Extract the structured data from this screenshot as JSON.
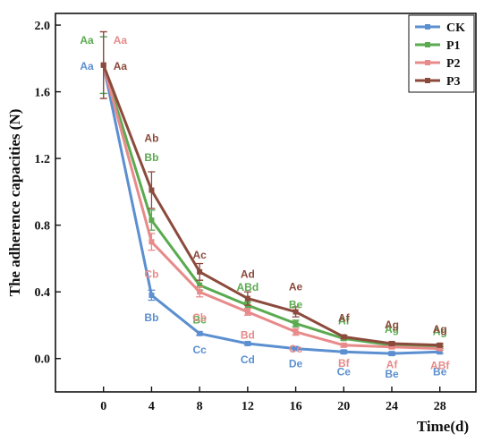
{
  "chart_data": {
    "type": "line",
    "xlabel": "Time(d)",
    "ylabel": "The adherence capacities (N)",
    "x": [
      0,
      4,
      8,
      12,
      16,
      20,
      24,
      28
    ],
    "xlim": [
      -4,
      31
    ],
    "ylim": [
      -0.2,
      2.07
    ],
    "xticks": [
      "0",
      "4",
      "8",
      "12",
      "16",
      "20",
      "24",
      "28"
    ],
    "yticks": [
      "0.0",
      "0.4",
      "0.8",
      "1.2",
      "1.6",
      "2.0"
    ],
    "grid": false,
    "legend_position": "top-right",
    "series": [
      {
        "name": "CK",
        "color": "#5b8fd0",
        "values": [
          1.76,
          0.38,
          0.15,
          0.09,
          0.06,
          0.04,
          0.03,
          0.04
        ],
        "errors": [
          0.17,
          0.03,
          0.01,
          0.01,
          0.01,
          0.01,
          0.01,
          0.01
        ],
        "labels": [
          "Aa",
          "Bb",
          "Cc",
          "Cd",
          "De",
          "Ce",
          "Be",
          "Be"
        ]
      },
      {
        "name": "P1",
        "color": "#5aaa4f",
        "values": [
          1.76,
          0.83,
          0.44,
          0.32,
          0.21,
          0.12,
          0.08,
          0.07
        ],
        "errors": [
          0.17,
          0.06,
          0.03,
          0.02,
          0.02,
          0.01,
          0.01,
          0.01
        ],
        "labels": [
          "Aa",
          "Bb",
          "Bc",
          "ABd",
          "Be",
          "Af",
          "Ag",
          "Ag"
        ]
      },
      {
        "name": "P2",
        "color": "#e88a8a",
        "values": [
          1.76,
          0.7,
          0.4,
          0.28,
          0.16,
          0.08,
          0.07,
          0.06
        ],
        "errors": [
          0.2,
          0.05,
          0.03,
          0.02,
          0.02,
          0.01,
          0.01,
          0.01
        ],
        "labels": [
          "Aa",
          "Cb",
          "Cb",
          "Bd",
          "Cc",
          "Bf",
          "Af",
          "ABf"
        ]
      },
      {
        "name": "P3",
        "color": "#8b4a3c",
        "values": [
          1.76,
          1.01,
          0.52,
          0.36,
          0.28,
          0.13,
          0.09,
          0.08
        ],
        "errors": [
          0.2,
          0.11,
          0.05,
          0.04,
          0.03,
          0.01,
          0.01,
          0.01
        ],
        "labels": [
          "Aa",
          "Ab",
          "Ac",
          "Ad",
          "Ae",
          "Af",
          "Ag",
          "Ag"
        ]
      }
    ]
  }
}
